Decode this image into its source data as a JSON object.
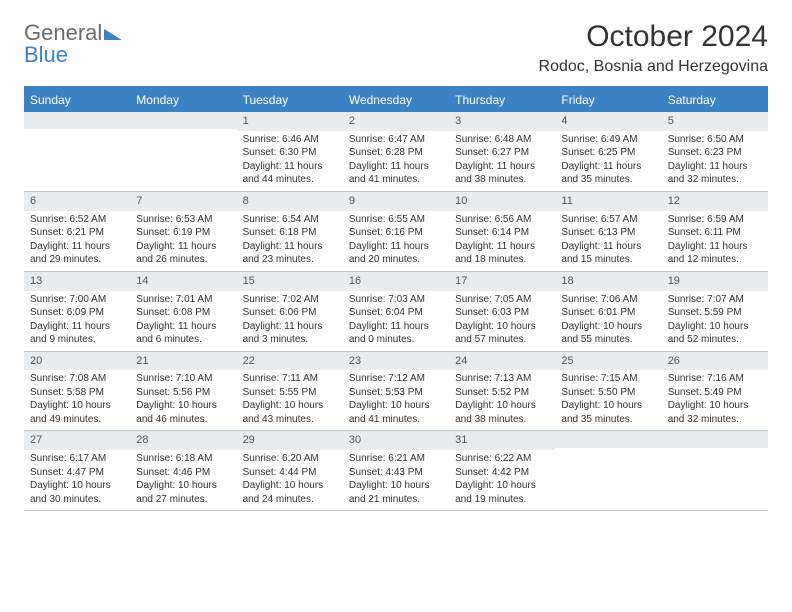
{
  "logo": {
    "text1": "General",
    "text2": "Blue"
  },
  "title": "October 2024",
  "location": "Rodoc, Bosnia and Herzegovina",
  "dayNames": [
    "Sunday",
    "Monday",
    "Tuesday",
    "Wednesday",
    "Thursday",
    "Friday",
    "Saturday"
  ],
  "colors": {
    "accent": "#3b82c4",
    "headerBg": "#3b82c4",
    "numRowBg": "#e9ecef",
    "border": "#b8c5d0"
  },
  "weeks": [
    [
      {
        "n": "",
        "sr": "",
        "ss": "",
        "dl": ""
      },
      {
        "n": "",
        "sr": "",
        "ss": "",
        "dl": ""
      },
      {
        "n": "1",
        "sr": "Sunrise: 6:46 AM",
        "ss": "Sunset: 6:30 PM",
        "dl": "Daylight: 11 hours and 44 minutes."
      },
      {
        "n": "2",
        "sr": "Sunrise: 6:47 AM",
        "ss": "Sunset: 6:28 PM",
        "dl": "Daylight: 11 hours and 41 minutes."
      },
      {
        "n": "3",
        "sr": "Sunrise: 6:48 AM",
        "ss": "Sunset: 6:27 PM",
        "dl": "Daylight: 11 hours and 38 minutes."
      },
      {
        "n": "4",
        "sr": "Sunrise: 6:49 AM",
        "ss": "Sunset: 6:25 PM",
        "dl": "Daylight: 11 hours and 35 minutes."
      },
      {
        "n": "5",
        "sr": "Sunrise: 6:50 AM",
        "ss": "Sunset: 6:23 PM",
        "dl": "Daylight: 11 hours and 32 minutes."
      }
    ],
    [
      {
        "n": "6",
        "sr": "Sunrise: 6:52 AM",
        "ss": "Sunset: 6:21 PM",
        "dl": "Daylight: 11 hours and 29 minutes."
      },
      {
        "n": "7",
        "sr": "Sunrise: 6:53 AM",
        "ss": "Sunset: 6:19 PM",
        "dl": "Daylight: 11 hours and 26 minutes."
      },
      {
        "n": "8",
        "sr": "Sunrise: 6:54 AM",
        "ss": "Sunset: 6:18 PM",
        "dl": "Daylight: 11 hours and 23 minutes."
      },
      {
        "n": "9",
        "sr": "Sunrise: 6:55 AM",
        "ss": "Sunset: 6:16 PM",
        "dl": "Daylight: 11 hours and 20 minutes."
      },
      {
        "n": "10",
        "sr": "Sunrise: 6:56 AM",
        "ss": "Sunset: 6:14 PM",
        "dl": "Daylight: 11 hours and 18 minutes."
      },
      {
        "n": "11",
        "sr": "Sunrise: 6:57 AM",
        "ss": "Sunset: 6:13 PM",
        "dl": "Daylight: 11 hours and 15 minutes."
      },
      {
        "n": "12",
        "sr": "Sunrise: 6:59 AM",
        "ss": "Sunset: 6:11 PM",
        "dl": "Daylight: 11 hours and 12 minutes."
      }
    ],
    [
      {
        "n": "13",
        "sr": "Sunrise: 7:00 AM",
        "ss": "Sunset: 6:09 PM",
        "dl": "Daylight: 11 hours and 9 minutes."
      },
      {
        "n": "14",
        "sr": "Sunrise: 7:01 AM",
        "ss": "Sunset: 6:08 PM",
        "dl": "Daylight: 11 hours and 6 minutes."
      },
      {
        "n": "15",
        "sr": "Sunrise: 7:02 AM",
        "ss": "Sunset: 6:06 PM",
        "dl": "Daylight: 11 hours and 3 minutes."
      },
      {
        "n": "16",
        "sr": "Sunrise: 7:03 AM",
        "ss": "Sunset: 6:04 PM",
        "dl": "Daylight: 11 hours and 0 minutes."
      },
      {
        "n": "17",
        "sr": "Sunrise: 7:05 AM",
        "ss": "Sunset: 6:03 PM",
        "dl": "Daylight: 10 hours and 57 minutes."
      },
      {
        "n": "18",
        "sr": "Sunrise: 7:06 AM",
        "ss": "Sunset: 6:01 PM",
        "dl": "Daylight: 10 hours and 55 minutes."
      },
      {
        "n": "19",
        "sr": "Sunrise: 7:07 AM",
        "ss": "Sunset: 5:59 PM",
        "dl": "Daylight: 10 hours and 52 minutes."
      }
    ],
    [
      {
        "n": "20",
        "sr": "Sunrise: 7:08 AM",
        "ss": "Sunset: 5:58 PM",
        "dl": "Daylight: 10 hours and 49 minutes."
      },
      {
        "n": "21",
        "sr": "Sunrise: 7:10 AM",
        "ss": "Sunset: 5:56 PM",
        "dl": "Daylight: 10 hours and 46 minutes."
      },
      {
        "n": "22",
        "sr": "Sunrise: 7:11 AM",
        "ss": "Sunset: 5:55 PM",
        "dl": "Daylight: 10 hours and 43 minutes."
      },
      {
        "n": "23",
        "sr": "Sunrise: 7:12 AM",
        "ss": "Sunset: 5:53 PM",
        "dl": "Daylight: 10 hours and 41 minutes."
      },
      {
        "n": "24",
        "sr": "Sunrise: 7:13 AM",
        "ss": "Sunset: 5:52 PM",
        "dl": "Daylight: 10 hours and 38 minutes."
      },
      {
        "n": "25",
        "sr": "Sunrise: 7:15 AM",
        "ss": "Sunset: 5:50 PM",
        "dl": "Daylight: 10 hours and 35 minutes."
      },
      {
        "n": "26",
        "sr": "Sunrise: 7:16 AM",
        "ss": "Sunset: 5:49 PM",
        "dl": "Daylight: 10 hours and 32 minutes."
      }
    ],
    [
      {
        "n": "27",
        "sr": "Sunrise: 6:17 AM",
        "ss": "Sunset: 4:47 PM",
        "dl": "Daylight: 10 hours and 30 minutes."
      },
      {
        "n": "28",
        "sr": "Sunrise: 6:18 AM",
        "ss": "Sunset: 4:46 PM",
        "dl": "Daylight: 10 hours and 27 minutes."
      },
      {
        "n": "29",
        "sr": "Sunrise: 6:20 AM",
        "ss": "Sunset: 4:44 PM",
        "dl": "Daylight: 10 hours and 24 minutes."
      },
      {
        "n": "30",
        "sr": "Sunrise: 6:21 AM",
        "ss": "Sunset: 4:43 PM",
        "dl": "Daylight: 10 hours and 21 minutes."
      },
      {
        "n": "31",
        "sr": "Sunrise: 6:22 AM",
        "ss": "Sunset: 4:42 PM",
        "dl": "Daylight: 10 hours and 19 minutes."
      },
      {
        "n": "",
        "sr": "",
        "ss": "",
        "dl": ""
      },
      {
        "n": "",
        "sr": "",
        "ss": "",
        "dl": ""
      }
    ]
  ]
}
